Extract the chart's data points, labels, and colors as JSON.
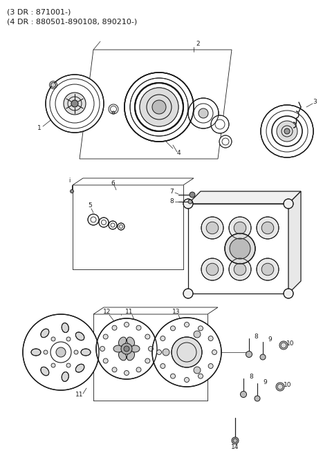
{
  "title_line1": "(3 DR : 871001-)",
  "title_line2": "(4 DR : 880501-890108, 890210-)",
  "bg_color": "#ffffff",
  "line_color": "#1a1a1a",
  "text_color": "#1a1a1a",
  "fig_width": 4.8,
  "fig_height": 6.82,
  "dpi": 100
}
